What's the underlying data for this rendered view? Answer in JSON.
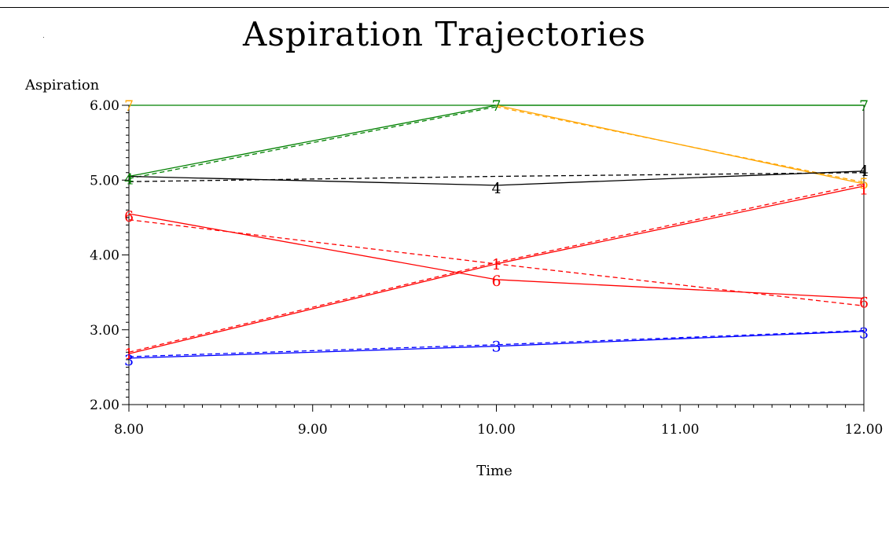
{
  "chart_data": {
    "type": "line",
    "title": "Aspiration Trajectories",
    "xlabel": "Time",
    "ylabel": "Aspiration",
    "xlim": [
      8,
      12
    ],
    "ylim": [
      2,
      6
    ],
    "x_ticks": [
      8,
      9,
      10,
      11,
      12
    ],
    "y_ticks": [
      2,
      3,
      4,
      5,
      6
    ],
    "x_tick_labels": [
      "8.00",
      "9.00",
      "10.00",
      "11.00",
      "12.00"
    ],
    "y_tick_labels": [
      "2.00",
      "3.00",
      "4.00",
      "5.00",
      "6.00"
    ],
    "grid": false,
    "legend": "none",
    "series": [
      {
        "label": "7",
        "color": "#008000",
        "style": "solid",
        "x": [
          8,
          10,
          12
        ],
        "y": [
          6.0,
          6.0,
          6.0
        ]
      },
      {
        "label": "7",
        "color": "#008000",
        "style": "solid",
        "x": [
          8,
          10,
          12
        ],
        "y": [
          5.05,
          6.0,
          6.0
        ]
      },
      {
        "label": "7",
        "color": "#008000",
        "style": "dashed",
        "x": [
          8,
          10
        ],
        "y": [
          5.02,
          5.98
        ]
      },
      {
        "label": "5",
        "color": "#FFA500",
        "style": "solid",
        "x": [
          10,
          12
        ],
        "y": [
          6.0,
          4.95
        ]
      },
      {
        "label": "5",
        "color": "#FFA500",
        "style": "dashed",
        "x": [
          10,
          12
        ],
        "y": [
          5.98,
          4.97
        ]
      },
      {
        "label": "4",
        "color": "#000000",
        "style": "solid",
        "x": [
          8,
          10,
          12
        ],
        "y": [
          5.05,
          4.93,
          5.12
        ]
      },
      {
        "label": "4",
        "color": "#000000",
        "style": "dashed",
        "x": [
          8,
          10,
          12
        ],
        "y": [
          4.98,
          5.05,
          5.1
        ]
      },
      {
        "label": "6",
        "color": "#FF0000",
        "style": "solid",
        "x": [
          8,
          10,
          12
        ],
        "y": [
          4.55,
          3.67,
          3.42
        ]
      },
      {
        "label": "6",
        "color": "#FF0000",
        "style": "dashed",
        "x": [
          8,
          10,
          12
        ],
        "y": [
          4.47,
          3.88,
          3.32
        ]
      },
      {
        "label": "1",
        "color": "#FF0000",
        "style": "solid",
        "x": [
          8,
          10,
          12
        ],
        "y": [
          2.68,
          3.88,
          4.92
        ]
      },
      {
        "label": "1",
        "color": "#FF0000",
        "style": "dashed",
        "x": [
          8,
          10,
          12
        ],
        "y": [
          2.7,
          3.9,
          4.95
        ]
      },
      {
        "label": "3",
        "color": "#0000FF",
        "style": "solid",
        "x": [
          8,
          10,
          12
        ],
        "y": [
          2.62,
          2.78,
          2.98
        ]
      },
      {
        "label": "3",
        "color": "#0000FF",
        "style": "dashed",
        "x": [
          8,
          10,
          12
        ],
        "y": [
          2.64,
          2.8,
          2.99
        ]
      }
    ],
    "point_labels": [
      {
        "text": "7",
        "color": "#FFA500",
        "x": 8,
        "y": 6.0
      },
      {
        "text": "7",
        "color": "#008000",
        "x": 10,
        "y": 6.0
      },
      {
        "text": "7",
        "color": "#008000",
        "x": 12,
        "y": 6.0
      },
      {
        "text": "4",
        "color": "#008000",
        "x": 8,
        "y": 5.02
      },
      {
        "text": "4",
        "color": "#000000",
        "x": 10,
        "y": 4.9
      },
      {
        "text": "4",
        "color": "#000000",
        "x": 12,
        "y": 5.13
      },
      {
        "text": "5",
        "color": "#FFA500",
        "x": 12,
        "y": 4.96
      },
      {
        "text": "6",
        "color": "#FF0000",
        "x": 8,
        "y": 4.52
      },
      {
        "text": "6",
        "color": "#FF0000",
        "x": 10,
        "y": 3.66
      },
      {
        "text": "6",
        "color": "#FF0000",
        "x": 12,
        "y": 3.37
      },
      {
        "text": "1",
        "color": "#FF0000",
        "x": 8,
        "y": 2.68
      },
      {
        "text": "1",
        "color": "#FF0000",
        "x": 10,
        "y": 3.88
      },
      {
        "text": "1",
        "color": "#FF0000",
        "x": 12,
        "y": 4.88
      },
      {
        "text": "3",
        "color": "#0000FF",
        "x": 8,
        "y": 2.6
      },
      {
        "text": "3",
        "color": "#0000FF",
        "x": 10,
        "y": 2.78
      },
      {
        "text": "3",
        "color": "#0000FF",
        "x": 12,
        "y": 2.96
      }
    ]
  }
}
